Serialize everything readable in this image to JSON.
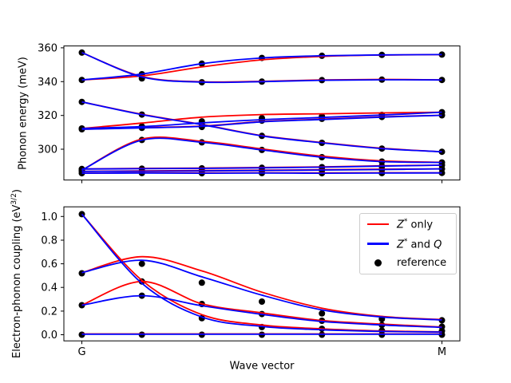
{
  "figure": {
    "background": "#ffffff",
    "xlabel": "Wave vector",
    "colors": {
      "z_star_only": "#ff0000",
      "z_star_and_q": "#0000ff",
      "reference": "#000000",
      "axes": "#000000",
      "legend_border": "#cccccc"
    }
  },
  "legend": {
    "entries": [
      {
        "symbol": "red-line",
        "label_base": "Z",
        "label_sup": "*",
        "label_rest": " only"
      },
      {
        "symbol": "blue-line",
        "label_base": "Z",
        "label_sup": "*",
        "label_rest": " and ",
        "label_extra_italic": "Q"
      },
      {
        "symbol": "black-dot",
        "label_rest": "reference"
      }
    ]
  },
  "chart_data": [
    {
      "type": "line",
      "position": "top",
      "ylabel": "Phonon energy (meV)",
      "x": [
        0,
        0.1667,
        0.3333,
        0.5,
        0.6667,
        0.8333,
        1
      ],
      "xlim": [
        -0.05,
        1.05
      ],
      "ylim": [
        281.8,
        361.1
      ],
      "yticks": [
        300,
        320,
        340,
        360
      ],
      "ytick_decimals": 0,
      "xticks": [
        0,
        1
      ],
      "xticklabels": [
        "G",
        "M"
      ],
      "show_xticklabels": false,
      "series_red": [
        [
          357.2,
          343.0,
          339.9,
          340.2,
          341.0,
          341.3,
          341.0
        ],
        [
          341.0,
          343.4,
          348.7,
          352.9,
          354.9,
          355.7,
          356.0
        ],
        [
          328.0,
          320.7,
          314.7,
          308.1,
          304.0,
          300.6,
          298.5
        ],
        [
          312.3,
          315.5,
          319.0,
          320.5,
          321.0,
          321.5,
          321.9
        ],
        [
          311.8,
          312.8,
          313.7,
          316.4,
          317.8,
          319.2,
          320.1
        ],
        [
          287.6,
          306.0,
          304.7,
          300.2,
          295.9,
          293.1,
          292.3
        ],
        [
          285.8,
          286.1,
          286.0,
          286.1,
          286.0,
          286.1,
          286.0
        ],
        [
          288.3,
          288.7,
          288.9,
          289.2,
          289.6,
          290.2,
          290.6
        ],
        [
          286.9,
          287.2,
          287.4,
          287.6,
          287.9,
          288.2,
          288.4
        ]
      ],
      "series_blue": [
        [
          357.2,
          342.8,
          339.7,
          340.0,
          340.8,
          341.1,
          341.0
        ],
        [
          341.0,
          344.5,
          350.6,
          354.0,
          355.3,
          355.8,
          356.0
        ],
        [
          328.0,
          320.5,
          314.5,
          307.9,
          303.8,
          300.4,
          298.5
        ],
        [
          312.3,
          313.4,
          315.6,
          317.5,
          318.8,
          320.2,
          321.9
        ],
        [
          311.8,
          312.6,
          313.5,
          316.2,
          317.6,
          319.0,
          320.1
        ],
        [
          287.6,
          305.4,
          304.1,
          299.6,
          295.3,
          292.7,
          292.2
        ],
        [
          285.8,
          285.9,
          285.8,
          285.9,
          285.8,
          285.9,
          286.0
        ],
        [
          288.3,
          288.5,
          288.7,
          289.0,
          289.4,
          290.0,
          290.6
        ],
        [
          286.9,
          287.0,
          287.2,
          287.4,
          287.7,
          288.0,
          288.4
        ]
      ],
      "reference_dots": [
        [
          357.2,
          341.9,
          339.6,
          340.0,
          340.9,
          341.2,
          341.0
        ],
        [
          341.0,
          344.4,
          350.6,
          354.0,
          355.3,
          355.8,
          356.0
        ],
        [
          328.0,
          320.5,
          314.6,
          307.9,
          303.8,
          300.4,
          298.5
        ],
        [
          312.3,
          313.5,
          316.5,
          318.4,
          319.4,
          320.3,
          321.9
        ],
        [
          311.8,
          312.6,
          313.2,
          316.9,
          318.0,
          319.1,
          320.1
        ],
        [
          287.6,
          305.5,
          304.1,
          299.6,
          295.3,
          292.7,
          292.2
        ],
        [
          285.8,
          285.9,
          285.8,
          285.9,
          285.8,
          285.9,
          286.0
        ],
        [
          288.3,
          288.5,
          288.7,
          289.0,
          289.4,
          290.0,
          290.6
        ],
        [
          286.9,
          287.0,
          287.2,
          287.4,
          287.7,
          288.0,
          288.4
        ]
      ]
    },
    {
      "type": "line",
      "position": "bottom",
      "ylabel_prefix": "Electron-phonon coupling (eV",
      "ylabel_sup": "3/2",
      "ylabel_suffix": ")",
      "x": [
        0,
        0.1667,
        0.3333,
        0.5,
        0.6667,
        0.8333,
        1
      ],
      "xlim": [
        -0.05,
        1.05
      ],
      "ylim": [
        -0.052,
        1.082
      ],
      "yticks": [
        0,
        0.2,
        0.4,
        0.6,
        0.8,
        1.0
      ],
      "ytick_decimals": 1,
      "xticks": [
        0,
        1
      ],
      "xticklabels": [
        "G",
        "M"
      ],
      "show_xticklabels": true,
      "series_red": [
        [
          1.02,
          0.46,
          0.17,
          0.082,
          0.05,
          0.032,
          0.024
        ],
        [
          0.525,
          0.66,
          0.54,
          0.36,
          0.225,
          0.155,
          0.128
        ],
        [
          0.25,
          0.45,
          0.262,
          0.185,
          0.12,
          0.09,
          0.065
        ],
        [
          0.007,
          0.007,
          0.007,
          0.007,
          0.007,
          0.007,
          0.007
        ]
      ],
      "series_blue": [
        [
          1.02,
          0.435,
          0.15,
          0.07,
          0.042,
          0.028,
          0.022
        ],
        [
          0.525,
          0.63,
          0.49,
          0.335,
          0.21,
          0.15,
          0.125
        ],
        [
          0.25,
          0.33,
          0.245,
          0.172,
          0.112,
          0.082,
          0.062
        ],
        [
          0.004,
          0.004,
          0.004,
          0.004,
          0.004,
          0.004,
          0.004
        ]
      ],
      "reference_dots": [
        [
          1.02,
          0.45,
          0.14,
          0.065,
          0.05,
          0.035,
          0.032
        ],
        [
          0.52,
          0.6,
          0.44,
          0.28,
          0.18,
          0.133,
          0.122
        ],
        [
          0.25,
          0.33,
          0.26,
          0.175,
          0.118,
          0.082,
          0.068
        ],
        [
          0.0,
          0.0,
          0.0,
          0.0,
          0.0,
          0.0,
          0.0
        ]
      ]
    }
  ]
}
